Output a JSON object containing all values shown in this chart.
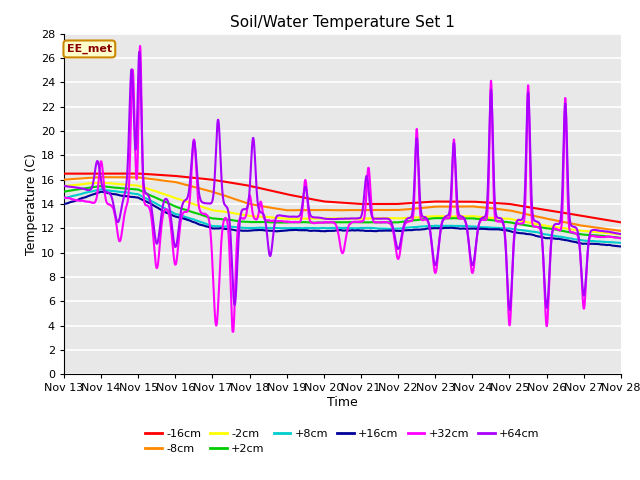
{
  "title": "Soil/Water Temperature Set 1",
  "xlabel": "Time",
  "ylabel": "Temperature (C)",
  "ylim": [
    0,
    28
  ],
  "xlim": [
    0,
    15
  ],
  "fig_bg": "#ffffff",
  "plot_bg": "#e8e8e8",
  "grid_color": "#ffffff",
  "annotation_text": "EE_met",
  "annotation_bg": "#ffffcc",
  "annotation_border": "#cc8800",
  "annotation_text_color": "#880000",
  "x_tick_labels": [
    "Nov 13",
    "Nov 14",
    "Nov 15",
    "Nov 16",
    "Nov 17",
    "Nov 18",
    "Nov 19",
    "Nov 20",
    "Nov 21",
    "Nov 22",
    "Nov 23",
    "Nov 24",
    "Nov 25",
    "Nov 26",
    "Nov 27",
    "Nov 28"
  ],
  "series": {
    "-16cm": {
      "color": "#ff0000",
      "lw": 1.5
    },
    "-8cm": {
      "color": "#ff8800",
      "lw": 1.5
    },
    "-2cm": {
      "color": "#ffff00",
      "lw": 1.5
    },
    "+2cm": {
      "color": "#00cc00",
      "lw": 1.5
    },
    "+8cm": {
      "color": "#00cccc",
      "lw": 1.5
    },
    "+16cm": {
      "color": "#000099",
      "lw": 1.5
    },
    "+32cm": {
      "color": "#ff00ff",
      "lw": 1.5
    },
    "+64cm": {
      "color": "#aa00ff",
      "lw": 1.5
    }
  },
  "legend_order": [
    "-16cm",
    "-8cm",
    "-2cm",
    "+2cm",
    "+8cm",
    "+16cm",
    "+32cm",
    "+64cm"
  ]
}
